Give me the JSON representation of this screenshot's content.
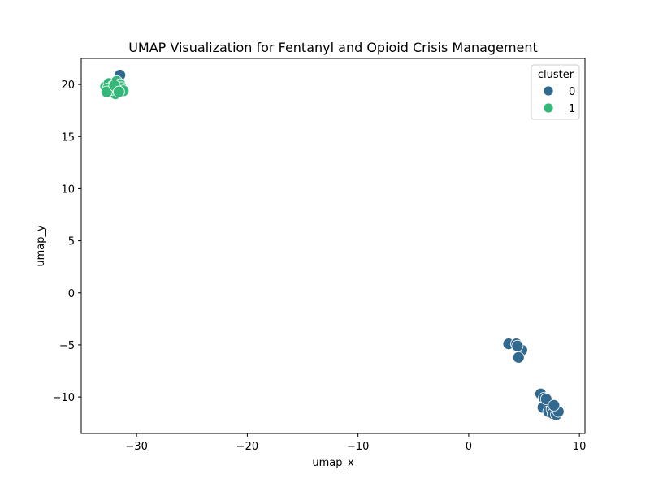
{
  "chart_data": {
    "type": "scatter",
    "title": "UMAP Visualization for Fentanyl and Opioid Crisis Management",
    "xlabel": "umap_x",
    "ylabel": "umap_y",
    "xlim": [
      -35,
      10.5
    ],
    "ylim": [
      -13.5,
      22.5
    ],
    "xticks": [
      -30,
      -20,
      -10,
      0,
      10
    ],
    "yticks": [
      -10,
      -5,
      0,
      5,
      10,
      15,
      20
    ],
    "grid": false,
    "legend": {
      "title": "cluster",
      "placement": "top-right"
    },
    "series": [
      {
        "name": "0",
        "color": "#31688e",
        "points": [
          [
            -31.5,
            20.9
          ],
          [
            3.6,
            -4.9
          ],
          [
            4.3,
            -4.9
          ],
          [
            4.8,
            -5.5
          ],
          [
            4.5,
            -6.2
          ],
          [
            4.4,
            -5.1
          ],
          [
            6.5,
            -9.7
          ],
          [
            6.8,
            -10.1
          ],
          [
            6.7,
            -11.0
          ],
          [
            7.0,
            -10.2
          ],
          [
            7.2,
            -11.4
          ],
          [
            7.5,
            -11.2
          ],
          [
            7.6,
            -11.6
          ],
          [
            7.9,
            -11.7
          ],
          [
            8.1,
            -11.4
          ],
          [
            7.7,
            -10.8
          ],
          [
            -32.2,
            19.3
          ],
          [
            -31.8,
            19.6
          ]
        ]
      },
      {
        "name": "1",
        "color": "#35b779",
        "points": [
          [
            -32.8,
            19.8
          ],
          [
            -32.5,
            20.1
          ],
          [
            -32.1,
            19.9
          ],
          [
            -31.8,
            20.3
          ],
          [
            -31.5,
            20.0
          ],
          [
            -31.9,
            19.1
          ],
          [
            -32.3,
            19.5
          ],
          [
            -32.6,
            19.6
          ],
          [
            -31.4,
            19.7
          ],
          [
            -31.2,
            19.4
          ],
          [
            -32.7,
            19.3
          ],
          [
            -32.0,
            19.9
          ],
          [
            -31.6,
            19.3
          ]
        ]
      }
    ]
  }
}
